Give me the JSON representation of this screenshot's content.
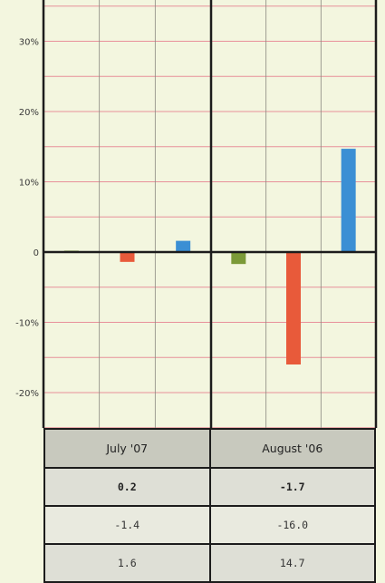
{
  "chart_data": {
    "type": "bar",
    "groups": [
      "July '07",
      "August '06"
    ],
    "series": [
      {
        "color": "#7b9a38",
        "values": [
          0.2,
          -1.7
        ]
      },
      {
        "color": "#e85a3a",
        "values": [
          -1.4,
          -16.0
        ]
      },
      {
        "color": "#3b8fd4",
        "values": [
          1.6,
          14.7
        ]
      }
    ],
    "ylim": [
      -26.5,
      36
    ],
    "y_ticks": [
      {
        "value": 30,
        "label": "30%"
      },
      {
        "value": 20,
        "label": "20%"
      },
      {
        "value": 10,
        "label": "10%"
      },
      {
        "value": 0,
        "label": "0"
      },
      {
        "value": -10,
        "label": "-10%"
      },
      {
        "value": -20,
        "label": "-20%"
      }
    ],
    "minor_grid_step": 5,
    "grid": true
  },
  "table": {
    "headers": [
      "July '07",
      "August '06"
    ],
    "rows": [
      [
        "0.2",
        "-1.7"
      ],
      [
        "-1.4",
        "-16.0"
      ],
      [
        "1.6",
        "14.7"
      ]
    ]
  }
}
